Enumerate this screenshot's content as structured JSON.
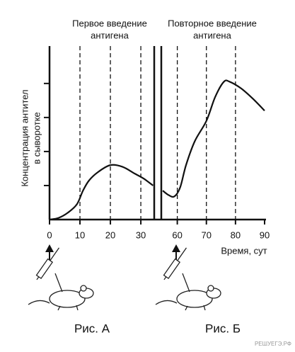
{
  "chart_data": {
    "type": "line",
    "annotations": [
      [
        "Первое введение",
        "антигена"
      ],
      [
        "Повторное введение",
        "антигена"
      ]
    ],
    "ylabel": [
      "Концентрация антител",
      "в сыворотке"
    ],
    "xlabel": "Время, сут",
    "captions": [
      "Рис. А",
      "Рис. Б"
    ],
    "watermark": "РЕШУЕГЭ.РФ",
    "x": [
      0,
      3,
      6,
      9,
      11,
      13,
      16,
      20,
      24,
      28,
      31,
      34,
      45,
      55,
      57,
      59,
      61,
      63,
      66,
      70,
      73,
      76,
      78,
      82,
      86,
      90
    ],
    "values": [
      0,
      0.05,
      0.2,
      0.45,
      0.85,
      1.15,
      1.4,
      1.6,
      1.55,
      1.35,
      1.2,
      1.0,
      null,
      0.85,
      0.72,
      0.68,
      0.95,
      1.6,
      2.3,
      2.9,
      3.6,
      4.05,
      4.05,
      3.85,
      3.55,
      3.2
    ],
    "color": "#111111",
    "xlim": [
      0,
      90
    ],
    "xbreak": [
      34.4,
      54.5
    ],
    "xticks": [
      0,
      10,
      20,
      30,
      60,
      70,
      80,
      90
    ],
    "ylim": [
      0,
      5.1
    ],
    "yticks": [
      1,
      2,
      3,
      4
    ],
    "dashed_at_ticks": [
      10,
      20,
      30,
      60,
      70,
      80
    ]
  }
}
